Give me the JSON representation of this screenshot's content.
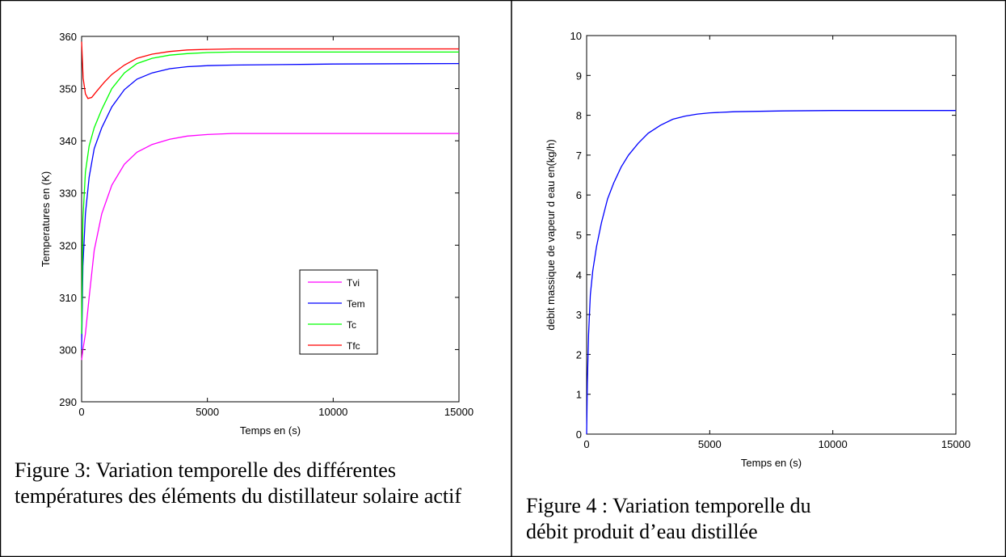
{
  "figures": [
    {
      "caption": "Figure 3: Variation temporelle des différentes températures des éléments du distillateur solaire actif"
    },
    {
      "caption": "Figure 4 : Variation temporelle du débit produit d’eau distillée"
    }
  ],
  "chart_data": [
    {
      "type": "line",
      "title": "",
      "xlabel": "Temps en (s)",
      "ylabel": "Temperatures en (K)",
      "xlim": [
        0,
        15000
      ],
      "ylim": [
        290,
        360
      ],
      "xticks": [
        0,
        5000,
        10000,
        15000
      ],
      "yticks": [
        290,
        300,
        310,
        320,
        330,
        340,
        350,
        360
      ],
      "grid": false,
      "legend_position": "bottom-right",
      "series": [
        {
          "name": "Tvi",
          "color": "#ff00ff",
          "x": [
            0,
            50,
            150,
            300,
            500,
            800,
            1200,
            1700,
            2200,
            2800,
            3500,
            4200,
            5000,
            6000,
            8000,
            10000,
            15000
          ],
          "y": [
            298,
            300,
            303,
            310,
            319,
            326,
            331.5,
            335.5,
            337.8,
            339.3,
            340.3,
            340.9,
            341.2,
            341.4,
            341.4,
            341.4,
            341.4
          ]
        },
        {
          "name": "Tem",
          "color": "#0000ff",
          "x": [
            0,
            50,
            150,
            300,
            500,
            800,
            1200,
            1700,
            2200,
            2800,
            3500,
            4200,
            5000,
            6000,
            8000,
            10000,
            15000
          ],
          "y": [
            300,
            316,
            326,
            333,
            338.5,
            342.5,
            346.5,
            349.8,
            351.8,
            353,
            353.8,
            354.2,
            354.4,
            354.5,
            354.6,
            354.7,
            354.8
          ]
        },
        {
          "name": "Tc",
          "color": "#00ff00",
          "x": [
            0,
            50,
            150,
            300,
            500,
            800,
            1200,
            1700,
            2200,
            2800,
            3500,
            4200,
            5000,
            6000,
            8000,
            10000,
            15000
          ],
          "y": [
            303,
            325,
            334,
            339,
            342.5,
            346,
            350,
            353,
            354.8,
            355.8,
            356.4,
            356.7,
            356.9,
            357,
            357,
            357,
            357
          ]
        },
        {
          "name": "Tfc",
          "color": "#ff0000",
          "x": [
            0,
            60,
            150,
            250,
            400,
            600,
            900,
            1200,
            1700,
            2200,
            2800,
            3500,
            4200,
            5000,
            6000,
            8000,
            10000,
            15000
          ],
          "y": [
            359,
            352,
            349,
            348.1,
            348.3,
            349.5,
            351.2,
            352.7,
            354.5,
            355.8,
            356.6,
            357.1,
            357.4,
            357.5,
            357.6,
            357.6,
            357.6,
            357.6
          ]
        }
      ]
    },
    {
      "type": "line",
      "title": "",
      "xlabel": "Temps en (s)",
      "ylabel": "debit massique de vapeur d eau en(kg/h)",
      "xlim": [
        0,
        15000
      ],
      "ylim": [
        0,
        10
      ],
      "xticks": [
        0,
        5000,
        10000,
        15000
      ],
      "yticks": [
        0,
        1,
        2,
        3,
        4,
        5,
        6,
        7,
        8,
        9,
        10
      ],
      "grid": false,
      "series": [
        {
          "color": "#0000ff",
          "x": [
            0,
            30,
            80,
            150,
            250,
            400,
            600,
            850,
            1100,
            1400,
            1700,
            2100,
            2500,
            3000,
            3500,
            4000,
            4500,
            5000,
            6000,
            8000,
            10000,
            15000
          ],
          "y": [
            0,
            1.3,
            2.5,
            3.5,
            4.1,
            4.7,
            5.3,
            5.9,
            6.3,
            6.7,
            7.0,
            7.3,
            7.55,
            7.75,
            7.9,
            7.98,
            8.03,
            8.06,
            8.09,
            8.11,
            8.12,
            8.12
          ]
        }
      ]
    }
  ]
}
